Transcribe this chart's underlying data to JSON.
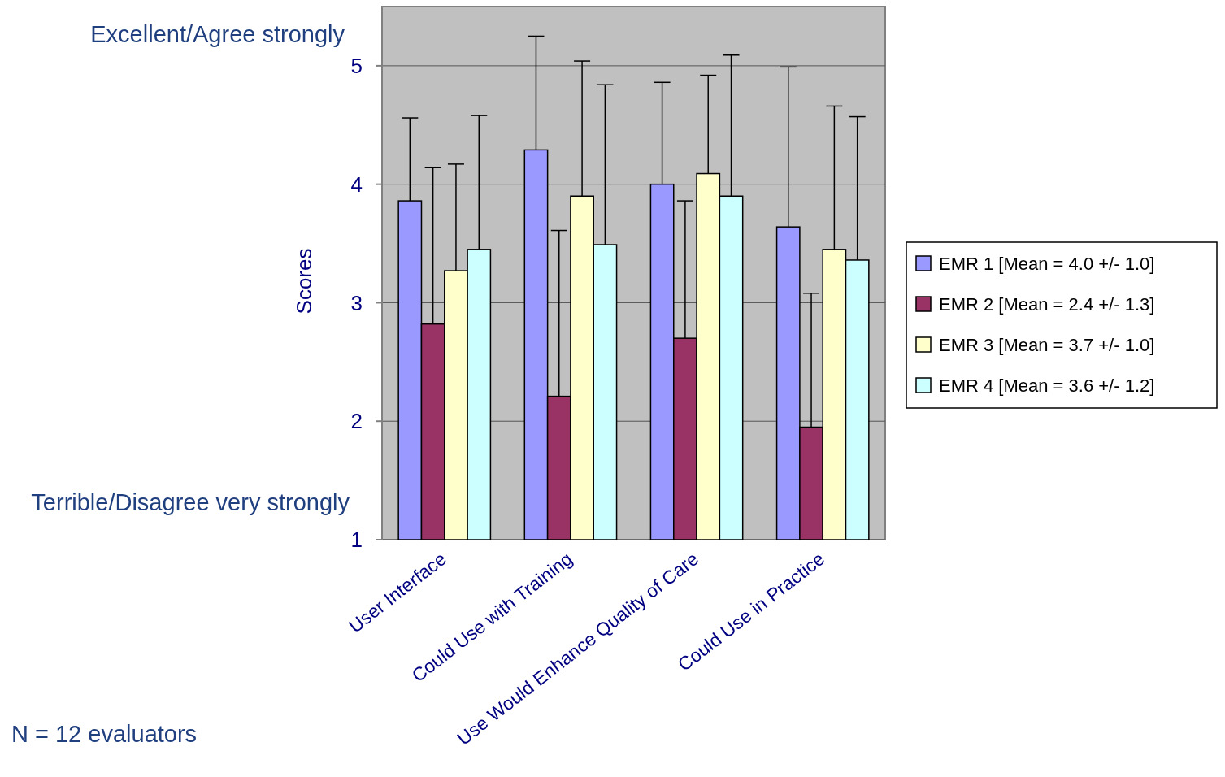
{
  "chart_data": {
    "type": "bar",
    "ylabel": "Scores",
    "categories": [
      "User Interface",
      "Could Use with Training",
      "Use Would Enhance Quality of Care",
      "Could Use in Practice"
    ],
    "series": [
      {
        "name": "EMR 1 [Mean = 4.0 +/- 1.0]",
        "color": "#9999ff",
        "values": [
          3.86,
          4.29,
          4.0,
          3.64
        ],
        "errors": [
          [
            3.86,
            4.56
          ],
          [
            4.29,
            5.25
          ],
          [
            4.0,
            4.86
          ],
          [
            3.64,
            4.99
          ]
        ]
      },
      {
        "name": "EMR 2 [Mean = 2.4 +/- 1.3]",
        "color": "#993366",
        "values": [
          2.82,
          2.21,
          2.7,
          1.95
        ],
        "errors": [
          [
            2.82,
            4.14
          ],
          [
            2.21,
            3.61
          ],
          [
            2.7,
            3.86
          ],
          [
            1.95,
            3.08
          ]
        ]
      },
      {
        "name": "EMR 3 [Mean = 3.7 +/- 1.0]",
        "color": "#ffffcc",
        "values": [
          3.27,
          3.9,
          4.09,
          3.45
        ],
        "errors": [
          [
            3.27,
            4.17
          ],
          [
            3.9,
            5.04
          ],
          [
            4.09,
            4.92
          ],
          [
            3.45,
            4.66
          ]
        ]
      },
      {
        "name": "EMR 4 [Mean = 3.6 +/- 1.2]",
        "color": "#ccffff",
        "values": [
          3.45,
          3.49,
          3.9,
          3.36
        ],
        "errors": [
          [
            3.45,
            4.58
          ],
          [
            3.49,
            4.84
          ],
          [
            3.9,
            5.09
          ],
          [
            3.36,
            4.57
          ]
        ]
      }
    ],
    "ylim": [
      1,
      5.5
    ],
    "yticks": [
      1,
      2,
      3,
      4,
      5
    ],
    "grid": "y",
    "legend": "right",
    "annotations": [
      "Excellent/Agree strongly",
      "Terrible/Disagree very strongly",
      "N = 12 evaluators"
    ]
  }
}
